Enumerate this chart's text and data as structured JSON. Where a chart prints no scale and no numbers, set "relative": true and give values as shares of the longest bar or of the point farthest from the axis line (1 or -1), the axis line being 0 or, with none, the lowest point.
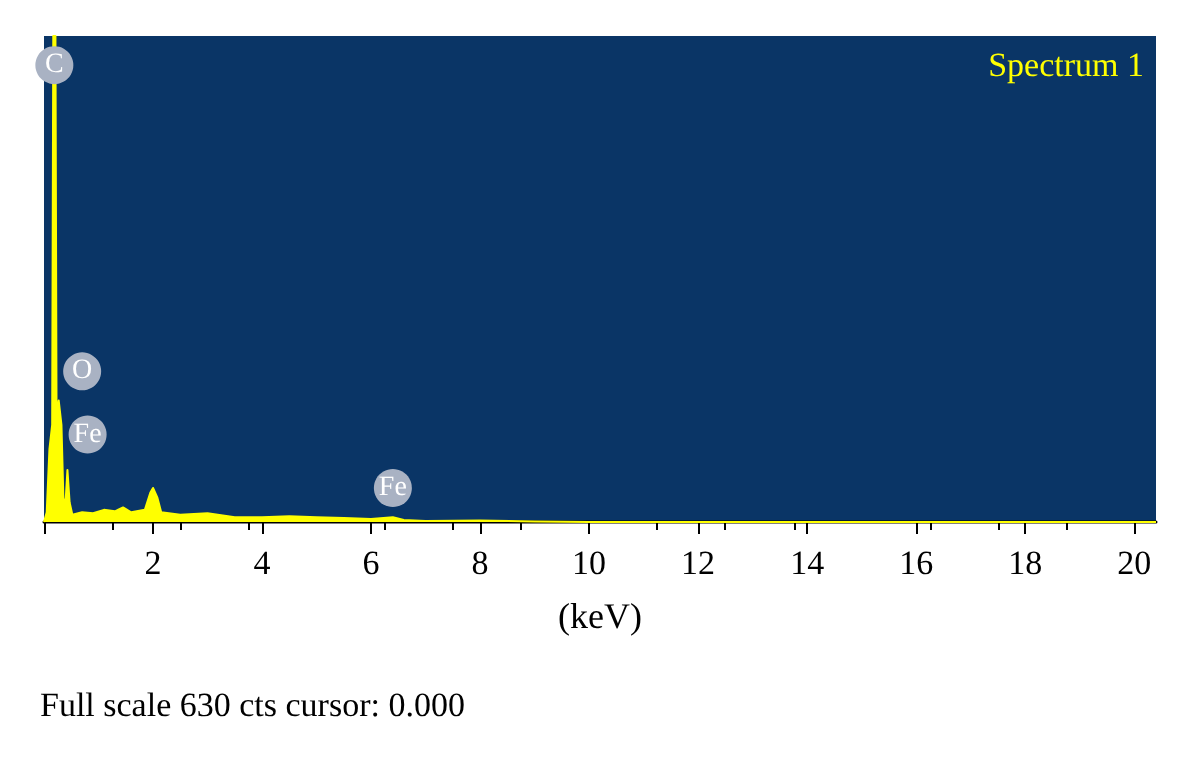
{
  "chart_data": {
    "type": "area",
    "relative": true,
    "xlabel": "(keV)",
    "x": [
      0,
      0.05,
      0.1,
      0.15,
      0.17,
      0.21,
      0.23,
      0.27,
      0.32,
      0.36,
      0.4,
      0.43,
      0.47,
      0.52,
      0.7,
      0.9,
      1.1,
      1.3,
      1.45,
      1.6,
      1.85,
      1.95,
      2.0,
      2.08,
      2.15,
      2.5,
      3.0,
      3.5,
      4.0,
      4.5,
      5.0,
      5.5,
      6.0,
      6.4,
      6.6,
      7.0,
      8.0,
      9.0,
      10.0,
      20.4
    ],
    "series": [
      {
        "color": "#ffff00",
        "values": [
          0,
          0.02,
          0.15,
          0.2,
          1,
          1,
          0.22,
          0.25,
          0.2,
          0.03,
          0.05,
          0.107,
          0.04,
          0.015,
          0.02,
          0.018,
          0.025,
          0.022,
          0.03,
          0.02,
          0.025,
          0.06,
          0.07,
          0.05,
          0.02,
          0.015,
          0.018,
          0.01,
          0.01,
          0.012,
          0.01,
          0.008,
          0.006,
          0.01,
          0.004,
          0.002,
          0.003,
          0.001,
          0,
          0
        ]
      }
    ],
    "xlim": [
      0,
      20.4
    ],
    "xticks": [
      {
        "value": 0,
        "label": null
      },
      2,
      4,
      6,
      8,
      10,
      12,
      14,
      16,
      18,
      20
    ],
    "grid": false,
    "marker": "none",
    "annotations": [
      {
        "text": "C",
        "x": 0.19,
        "y": 0.94
      },
      {
        "text": "O",
        "x": 0.7,
        "y": 0.31
      },
      {
        "text": "Fe",
        "x": 0.8,
        "y": 0.18
      },
      {
        "text": "Fe",
        "x": 6.4,
        "y": 0.07
      },
      "Spectrum 1",
      "Full scale 630 cts cursor: 0.000"
    ]
  }
}
